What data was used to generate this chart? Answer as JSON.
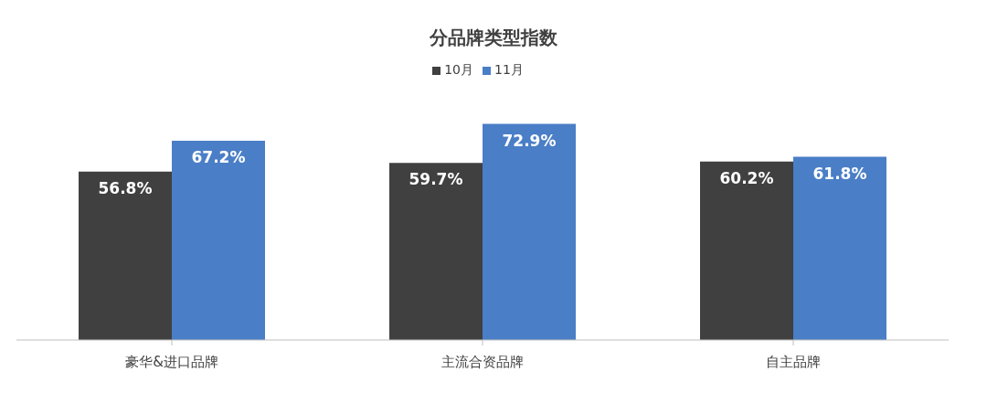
{
  "chart_data": {
    "type": "bar",
    "title": "分品牌类型指数",
    "categories": [
      "豪华&进口品牌",
      "主流合资品牌",
      "自主品牌"
    ],
    "series": [
      {
        "name": "10月",
        "color": "#404040",
        "values": [
          56.8,
          59.7,
          60.2
        ],
        "value_labels": [
          "56.8%",
          "59.7%",
          "60.2%"
        ]
      },
      {
        "name": "11月",
        "color": "#4a7ec6",
        "values": [
          67.2,
          72.9,
          61.8
        ],
        "value_labels": [
          "67.2%",
          "72.9%",
          "61.8%"
        ]
      }
    ],
    "legend": "top",
    "grid": false
  }
}
